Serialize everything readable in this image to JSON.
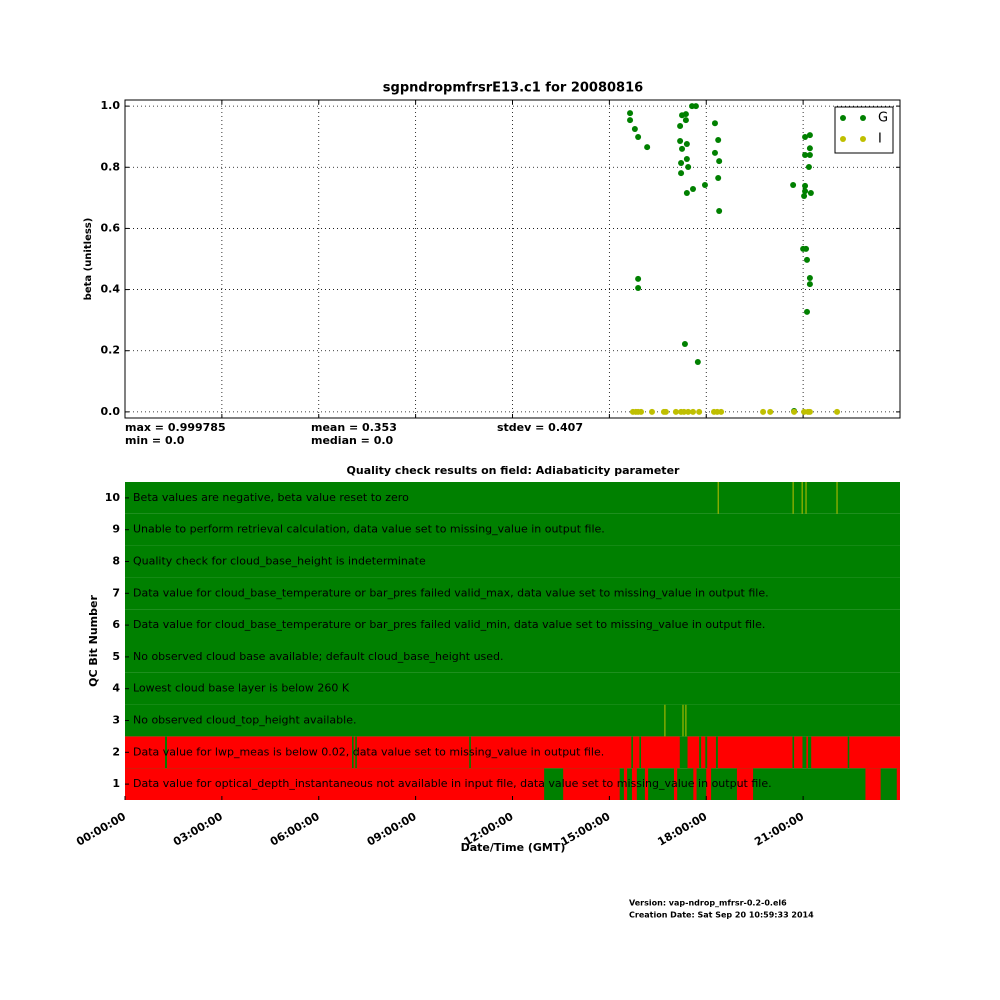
{
  "chart_data": [
    {
      "type": "scatter",
      "title": "sgpndropmfrsrE13.c1 for 20080816",
      "ylabel": "beta (unitless)",
      "xlim": [
        0,
        24
      ],
      "xticks": [
        0,
        3,
        6,
        9,
        12,
        15,
        18,
        21
      ],
      "ylim": [
        -0.02,
        1.02
      ],
      "yticks": [
        {
          "value": 0,
          "label": "0.0"
        },
        {
          "value": 0.2,
          "label": "0.2"
        },
        {
          "value": 0.4,
          "label": "0.4"
        },
        {
          "value": 0.6,
          "label": "0.6"
        },
        {
          "value": 0.8,
          "label": "0.8"
        },
        {
          "value": 1,
          "label": "1.0"
        }
      ],
      "grid": true,
      "legend": "upper right",
      "annotations": [
        "max = 0.999785",
        "min = 0.0",
        "mean = 0.353",
        "median = 0.0",
        "stdev = 0.407"
      ],
      "series": [
        {
          "name": "G",
          "color": "#008000",
          "x": [
            15.64,
            15.64,
            15.79,
            15.89,
            16.17,
            15.89,
            15.89,
            17.19,
            17.25,
            17.19,
            17.25,
            17.37,
            17.37,
            17.4,
            17.4,
            17.44,
            17.22,
            17.22,
            17.4,
            17.59,
            17.56,
            17.68,
            17.34,
            17.74,
            17.96,
            18.27,
            18.37,
            18.27,
            18.4,
            18.37,
            18.4,
            20.69,
            21.06,
            21.21,
            21.06,
            21.21,
            21.21,
            21.18,
            21.06,
            21.06,
            21.03,
            21.24,
            21.0,
            21.09,
            21.12,
            21.21,
            21.21,
            21.12,
            20.72
          ],
          "values": [
            0.977,
            0.954,
            0.925,
            0.899,
            0.866,
            0.435,
            0.405,
            0.886,
            0.86,
            0.935,
            0.97,
            0.974,
            0.954,
            0.876,
            0.827,
            0.801,
            0.814,
            0.781,
            0.716,
            0.729,
            1.0,
            1.0,
            0.222,
            0.163,
            0.742,
            0.944,
            0.889,
            0.847,
            0.82,
            0.765,
            0.657,
            0.742,
            0.899,
            0.905,
            0.84,
            0.862,
            0.84,
            0.801,
            0.739,
            0.722,
            0.706,
            0.716,
            0.533,
            0.533,
            0.497,
            0.438,
            0.418,
            0.327,
            0.003
          ]
        },
        {
          "name": "I",
          "color": "#bfbf00",
          "x": [
            15.73,
            15.82,
            15.89,
            15.98,
            16.32,
            16.69,
            16.75,
            17.06,
            17.22,
            17.31,
            17.44,
            17.59,
            17.78,
            18.24,
            18.34,
            18.46,
            19.76,
            19.98,
            20.72,
            21.03,
            21.15,
            21.21,
            22.05
          ],
          "values": [
            0,
            0,
            0,
            0,
            0,
            0,
            0,
            0,
            0,
            0,
            0,
            0,
            0,
            0,
            0,
            0,
            0,
            0,
            0,
            0,
            0,
            0,
            0
          ]
        }
      ]
    },
    {
      "type": "qc",
      "title": "Quality check results on field: Adiabaticity parameter",
      "ylabel": "QC Bit Number",
      "xlabel": "Date/Time (GMT)",
      "xlim": [
        0,
        24
      ],
      "xticks": [
        {
          "value": 0,
          "label": "00:00:00"
        },
        {
          "value": 3,
          "label": "03:00:00"
        },
        {
          "value": 6,
          "label": "06:00:00"
        },
        {
          "value": 9,
          "label": "09:00:00"
        },
        {
          "value": 12,
          "label": "12:00:00"
        },
        {
          "value": 15,
          "label": "15:00:00"
        },
        {
          "value": 18,
          "label": "18:00:00"
        },
        {
          "value": 21,
          "label": "21:00:00"
        }
      ],
      "ylim": [
        0.5,
        10.5
      ],
      "pass_color": "#008000",
      "fail_color": "#ff0000",
      "indeterminate_color": "#bfbf00",
      "rows": [
        {
          "bit": 1,
          "description": "Data value  for optical_depth_instantaneous not available in input file, data value set to missing_value in output file.",
          "fail": [
            [
              0,
              12.98
            ],
            [
              13.57,
              15.32
            ],
            [
              15.45,
              15.55
            ],
            [
              15.7,
              15.85
            ],
            [
              16.1,
              16.2
            ],
            [
              17.0,
              17.1
            ],
            [
              17.6,
              17.7
            ],
            [
              18.0,
              18.15
            ],
            [
              18.95,
              19.45
            ],
            [
              22.93,
              23.4
            ],
            [
              23.9,
              24
            ]
          ],
          "indeterminate": []
        },
        {
          "bit": 2,
          "description": "Data value for lwp_meas is below 0.02, data value set to missing_value in output file.",
          "fail": [
            [
              0,
              1.24
            ],
            [
              1.3,
              7.03
            ],
            [
              7.08,
              7.13
            ],
            [
              7.18,
              10.66
            ],
            [
              10.71,
              15.68
            ],
            [
              15.73,
              15.93
            ],
            [
              15.98,
              17.18
            ],
            [
              17.42,
              17.78
            ],
            [
              17.84,
              17.97
            ],
            [
              18.03,
              18.3
            ],
            [
              18.36,
              20.67
            ],
            [
              20.72,
              20.98
            ],
            [
              21.1,
              21.15
            ],
            [
              21.25,
              22.38
            ],
            [
              22.43,
              24
            ]
          ],
          "indeterminate": []
        },
        {
          "bit": 3,
          "description": "No observed cloud_top_height available.",
          "fail": [],
          "indeterminate": [
            16.72,
            17.28,
            17.37
          ]
        },
        {
          "bit": 4,
          "description": "Lowest cloud base layer is below 260 K",
          "fail": [],
          "indeterminate": []
        },
        {
          "bit": 5,
          "description": "No observed cloud base available; default cloud_base_height used.",
          "fail": [],
          "indeterminate": []
        },
        {
          "bit": 6,
          "description": "Data value for cloud_base_temperature or bar_pres failed valid_min, data value set to missing_value in output file.",
          "fail": [],
          "indeterminate": []
        },
        {
          "bit": 7,
          "description": "Data value for cloud_base_temperature or bar_pres failed valid_max, data value set to missing_value in output file.",
          "fail": [],
          "indeterminate": []
        },
        {
          "bit": 8,
          "description": "Quality check for cloud_base_height is indeterminate",
          "fail": [],
          "indeterminate": []
        },
        {
          "bit": 9,
          "description": "Unable to perform retrieval calculation, data value set to missing_value in output file.",
          "fail": [],
          "indeterminate": []
        },
        {
          "bit": 10,
          "description": "Beta values are negative, beta value reset to zero",
          "fail": [],
          "indeterminate": [
            18.37,
            20.69,
            20.97,
            21.09,
            22.05
          ]
        }
      ]
    }
  ],
  "footer": {
    "version": "Version: vap-ndrop_mfrsr-0.2-0.el6",
    "creation_date": "Creation Date: Sat Sep 20 10:59:33 2014"
  }
}
